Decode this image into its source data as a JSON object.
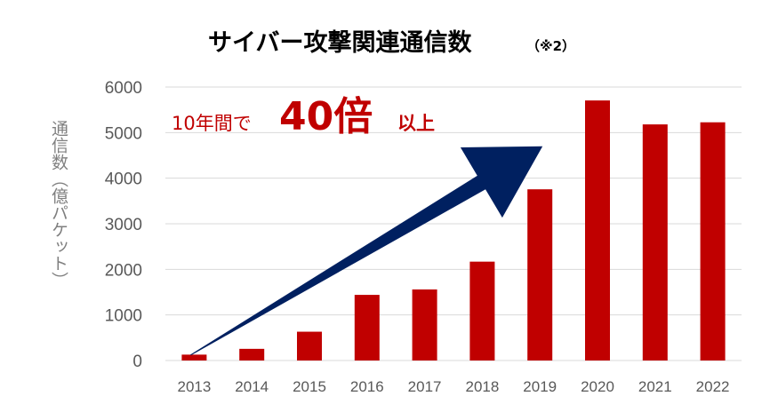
{
  "chart_data": {
    "type": "bar",
    "title": "サイバー攻撃関連通信数",
    "title_note": "（※2）",
    "ylabel": "通信数（億パケット）",
    "xlabel": "",
    "categories": [
      "2013",
      "2014",
      "2015",
      "2016",
      "2017",
      "2018",
      "2019",
      "2020",
      "2021",
      "2022"
    ],
    "values": [
      129,
      256,
      632,
      1440,
      1559,
      2169,
      3756,
      5705,
      5180,
      5226
    ],
    "ylim": [
      0,
      6000
    ],
    "yticks": [
      "0",
      "1000",
      "2000",
      "3000",
      "4000",
      "5000",
      "6000"
    ],
    "grid": true,
    "bar_color": "#c00000",
    "annotation": {
      "prefix": "10年間で",
      "highlight": "40倍",
      "suffix": "以上",
      "color": "#c00000"
    },
    "arrow": {
      "color": "#002060",
      "from": [
        "2013",
        120
      ],
      "to": [
        "2019",
        4700
      ]
    }
  }
}
